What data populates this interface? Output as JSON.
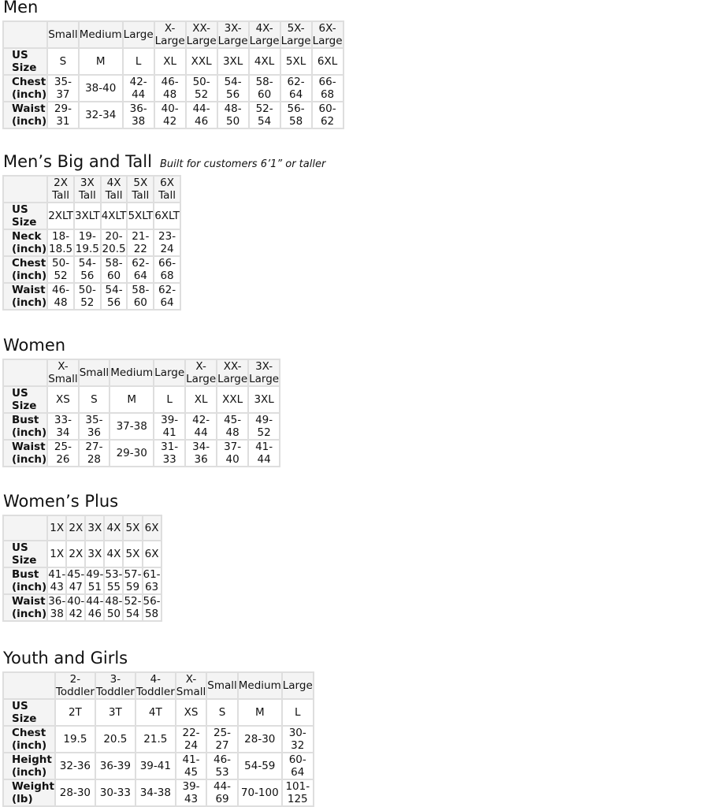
{
  "sections": [
    {
      "title": "Men",
      "note": "",
      "headers": [
        "Small",
        "Medium",
        "Large",
        "X-Large",
        "XX-Large",
        "3X-Large",
        "4X-Large",
        "5X-Large",
        "6X-Large"
      ],
      "rows": [
        {
          "label": "US Size",
          "values": [
            "S",
            "M",
            "L",
            "XL",
            "XXL",
            "3XL",
            "4XL",
            "5XL",
            "6XL"
          ]
        },
        {
          "label": "Chest (inch)",
          "values": [
            "35-37",
            "38-40",
            "42-44",
            "46-48",
            "50-52",
            "54-56",
            "58-60",
            "62-64",
            "66-68"
          ]
        },
        {
          "label": "Waist (inch)",
          "values": [
            "29-31",
            "32-34",
            "36-38",
            "40-42",
            "44-46",
            "48-50",
            "52-54",
            "56-58",
            "60-62"
          ]
        }
      ]
    },
    {
      "title": "Men’s Big and Tall",
      "note": "Built for customers 6’1” or taller",
      "headers": [
        "2X Tall",
        "3X Tall",
        "4X Tall",
        "5X Tall",
        "6X Tall"
      ],
      "rows": [
        {
          "label": "US Size",
          "values": [
            "2XLT",
            "3XLT",
            "4XLT",
            "5XLT",
            "6XLT"
          ]
        },
        {
          "label": "Neck (inch)",
          "values": [
            "18-18.5",
            "19-19.5",
            "20-20.5",
            "21-22",
            "23-24"
          ]
        },
        {
          "label": "Chest (inch)",
          "values": [
            "50-52",
            "54-56",
            "58-60",
            "62-64",
            "66-68"
          ]
        },
        {
          "label": "Waist (inch)",
          "values": [
            "46-48",
            "50-52",
            "54-56",
            "58-60",
            "62-64"
          ]
        }
      ]
    },
    {
      "title": "Women",
      "note": "",
      "headers": [
        "X-Small",
        "Small",
        "Medium",
        "Large",
        "X-Large",
        "XX-Large",
        "3X-Large"
      ],
      "rows": [
        {
          "label": "US Size",
          "values": [
            "XS",
            "S",
            "M",
            "L",
            "XL",
            "XXL",
            "3XL"
          ]
        },
        {
          "label": "Bust (inch)",
          "values": [
            "33-34",
            "35-36",
            "37-38",
            "39-41",
            "42-44",
            "45-48",
            "49-52"
          ]
        },
        {
          "label": "Waist (inch)",
          "values": [
            "25-26",
            "27-28",
            "29-30",
            "31-33",
            "34-36",
            "37-40",
            "41-44"
          ]
        }
      ]
    },
    {
      "title": "Women’s  Plus",
      "note": "",
      "headers": [
        "1X",
        "2X",
        "3X",
        "4X",
        "5X",
        "6X"
      ],
      "rows": [
        {
          "label": "US Size",
          "values": [
            "1X",
            "2X",
            "3X",
            "4X",
            "5X",
            "6X"
          ]
        },
        {
          "label": "Bust (inch)",
          "values": [
            "41-43",
            "45-47",
            "49-51",
            "53-55",
            "57-59",
            "61-63"
          ]
        },
        {
          "label": "Waist (inch)",
          "values": [
            "36-38",
            "40-42",
            "44-46",
            "48-50",
            "52-54",
            "56-58"
          ]
        }
      ]
    },
    {
      "title": "Youth and Girls",
      "note": "",
      "headers": [
        "2-Toddler",
        "3-Toddler",
        "4-Toddler",
        "X-Small",
        "Small",
        "Medium",
        "Large"
      ],
      "rows": [
        {
          "label": "US Size",
          "values": [
            "2T",
            "3T",
            "4T",
            "XS",
            "S",
            "M",
            "L"
          ]
        },
        {
          "label": "Chest (inch)",
          "values": [
            "19.5",
            "20.5",
            "21.5",
            "22-24",
            "25-27",
            "28-30",
            "30-32"
          ]
        },
        {
          "label": "Height (inch)",
          "values": [
            "32-36",
            "36-39",
            "39-41",
            "41-45",
            "46-53",
            "54-59",
            "60-64"
          ]
        },
        {
          "label": "Weight (lb)",
          "values": [
            "28-30",
            "30-33",
            "34-38",
            "39-43",
            "44-69",
            "70-100",
            "101-125"
          ]
        }
      ]
    }
  ]
}
